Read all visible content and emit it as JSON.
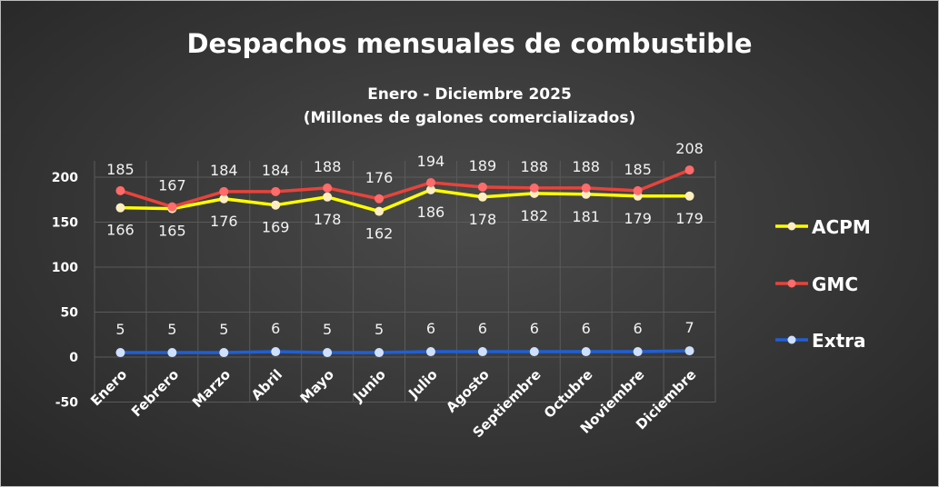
{
  "chart_data": {
    "type": "line",
    "title": "Despachos mensuales de combustible",
    "subtitle_line1": "Enero - Diciembre 2025",
    "subtitle_line2": "(Millones de galones comercializados)",
    "categories": [
      "Enero",
      "Febrero",
      "Marzo",
      "Abril",
      "Mayo",
      "Junio",
      "Julio",
      "Agosto",
      "Septiembre",
      "Octubre",
      "Noviembre",
      "Diciembre"
    ],
    "ylim": [
      -50,
      225
    ],
    "yticks": [
      -50,
      0,
      50,
      100,
      150,
      200
    ],
    "grid": true,
    "legend_position": "right",
    "series": [
      {
        "name": "ACPM",
        "color": "#ffff00",
        "marker": "#fdeec0",
        "values": [
          166,
          165,
          176,
          169,
          178,
          162,
          186,
          178,
          182,
          181,
          179,
          179
        ]
      },
      {
        "name": "GMC",
        "color": "#e8433a",
        "marker": "#ff6b6b",
        "values": [
          185,
          167,
          184,
          184,
          188,
          176,
          194,
          189,
          188,
          188,
          185,
          208
        ]
      },
      {
        "name": "Extra",
        "color": "#1f5fd6",
        "marker": "#cfe0ff",
        "values": [
          5,
          5,
          5,
          6,
          5,
          5,
          6,
          6,
          6,
          6,
          6,
          7
        ]
      }
    ]
  }
}
